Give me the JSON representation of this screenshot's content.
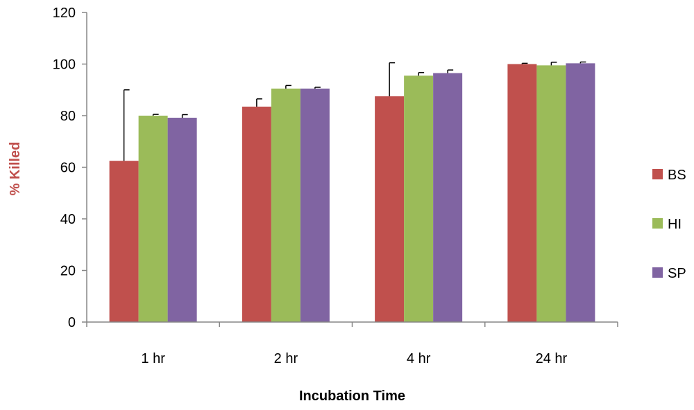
{
  "chart_data": {
    "type": "bar",
    "title": "",
    "xlabel": "Incubation Time",
    "ylabel": "% Killed",
    "ylabel_color": "#c0504d",
    "ylim": [
      0,
      120
    ],
    "yticks": [
      0,
      20,
      40,
      60,
      80,
      100,
      120
    ],
    "ytick_labels": [
      "0",
      "20",
      "40",
      "60",
      "80",
      "100",
      "120"
    ],
    "categories": [
      "1 hr",
      "2 hr",
      "4 hr",
      "24 hr"
    ],
    "series": [
      {
        "name": "BS",
        "color": "#c0504d",
        "values": [
          62.5,
          83.5,
          87.5,
          100
        ],
        "errors": [
          27.5,
          3,
          13,
          0.3
        ]
      },
      {
        "name": "HI",
        "color": "#9bbb59",
        "values": [
          80,
          90.5,
          95.5,
          99.5
        ],
        "errors": [
          0.5,
          1.2,
          1.2,
          1.2
        ]
      },
      {
        "name": "SP",
        "color": "#8064a2",
        "values": [
          79.2,
          90.5,
          96.5,
          100.3
        ],
        "errors": [
          1.2,
          0.5,
          1.2,
          0.5
        ]
      }
    ],
    "grid": false,
    "legend_position": "right"
  }
}
